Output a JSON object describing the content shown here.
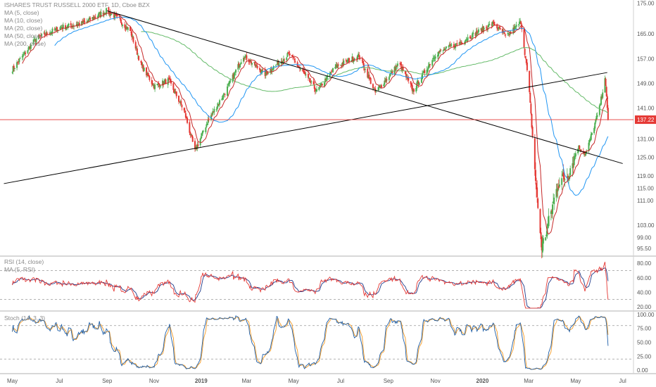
{
  "header": {
    "title": "ISHARES TRUST RUSSELL 2000 ETF, 1D, Cboe BZX",
    "legend": [
      "MA (5, close)",
      "MA (10, close)",
      "MA (20, close)",
      "MA (50, close)",
      "MA (200, close)"
    ]
  },
  "price_tag": "137.22",
  "rsi_panel": {
    "legend": [
      "RSI (14, close)",
      "MA (5, RSI)"
    ]
  },
  "stoch_panel": {
    "legend": [
      "Stoch (14, 3, 3)"
    ]
  },
  "colors": {
    "candle_up": "#4caf50",
    "candle_down": "#e53935",
    "ma5": "#e53935",
    "ma10": "#c62828",
    "ma20": "#2196f3",
    "ma200": "#66bb6a",
    "trendline": "#000000",
    "price_line": "#e53935",
    "rsi": "#e53935",
    "rsi_ma": "#1e3a8a",
    "stoch_k": "#1f5fa8",
    "stoch_d": "#f59a23"
  },
  "chart_data": [
    {
      "type": "candlestick",
      "title": "ISHARES TRUST RUSSELL 2000 ETF, 1D, Cboe BZX",
      "x_ticks": [
        "May",
        "Jul",
        "Sep",
        "Nov",
        "2019",
        "Mar",
        "May",
        "Jul",
        "Sep",
        "Nov",
        "2020",
        "Mar",
        "May",
        "Jul"
      ],
      "y_ticks": [
        "175.00",
        "165.00",
        "157.00",
        "149.00",
        "141.00",
        "131.00",
        "125.00",
        "119.00",
        "115.00",
        "111.00",
        "103.00",
        "99.00",
        "95.50"
      ],
      "ylim": [
        93,
        176
      ],
      "last_price": 137.22,
      "close_path": [
        [
          "2018-05-01",
          153.5
        ],
        [
          "2018-06-01",
          163.5
        ],
        [
          "2018-07-01",
          167.0
        ],
        [
          "2018-08-01",
          168.5
        ],
        [
          "2018-08-31",
          172.5
        ],
        [
          "2018-09-15",
          170.0
        ],
        [
          "2018-10-01",
          166.0
        ],
        [
          "2018-10-15",
          155.0
        ],
        [
          "2018-11-01",
          148.0
        ],
        [
          "2018-11-20",
          150.0
        ],
        [
          "2018-12-10",
          140.0
        ],
        [
          "2018-12-24",
          127.0
        ],
        [
          "2019-01-10",
          137.0
        ],
        [
          "2019-02-01",
          146.0
        ],
        [
          "2019-02-25",
          158.0
        ],
        [
          "2019-03-25",
          152.0
        ],
        [
          "2019-04-25",
          158.5
        ],
        [
          "2019-05-31",
          146.5
        ],
        [
          "2019-06-25",
          154.5
        ],
        [
          "2019-07-25",
          158.0
        ],
        [
          "2019-08-15",
          146.0
        ],
        [
          "2019-09-15",
          155.5
        ],
        [
          "2019-10-03",
          146.5
        ],
        [
          "2019-11-01",
          158.5
        ],
        [
          "2019-12-01",
          162.0
        ],
        [
          "2020-01-15",
          168.5
        ],
        [
          "2020-02-01",
          164.0
        ],
        [
          "2020-02-20",
          169.0
        ],
        [
          "2020-03-01",
          149.0
        ],
        [
          "2020-03-12",
          111.0
        ],
        [
          "2020-03-18",
          96.0
        ],
        [
          "2020-03-23",
          100.0
        ],
        [
          "2020-04-08",
          116.5
        ],
        [
          "2020-04-21",
          119.5
        ],
        [
          "2020-05-04",
          128.5
        ],
        [
          "2020-05-14",
          126.0
        ],
        [
          "2020-06-01",
          141.0
        ],
        [
          "2020-06-08",
          151.0
        ],
        [
          "2020-06-12",
          137.22
        ]
      ],
      "trendlines": [
        {
          "from": [
            "2018-04-20",
            116.5
          ],
          "to": [
            "2020-06-11",
            152.5
          ]
        },
        {
          "from": [
            "2018-09-01",
            172.5
          ],
          "to": [
            "2020-07-01",
            123.0
          ]
        }
      ]
    },
    {
      "type": "line",
      "series": [
        {
          "name": "RSI (14, close)"
        },
        {
          "name": "MA (5, RSI)"
        }
      ],
      "y_ticks": [
        "80.00",
        "60.00",
        "40.00",
        "20.00"
      ],
      "ylim": [
        15,
        88
      ],
      "bands": [
        70,
        30
      ]
    },
    {
      "type": "line",
      "series": [
        {
          "name": "Stoch (14, 3, 3)"
        }
      ],
      "y_ticks": [
        "100.00",
        "75.00",
        "50.00",
        "25.00",
        "0.00"
      ],
      "ylim": [
        -5,
        105
      ],
      "bands": [
        80,
        20
      ]
    }
  ]
}
